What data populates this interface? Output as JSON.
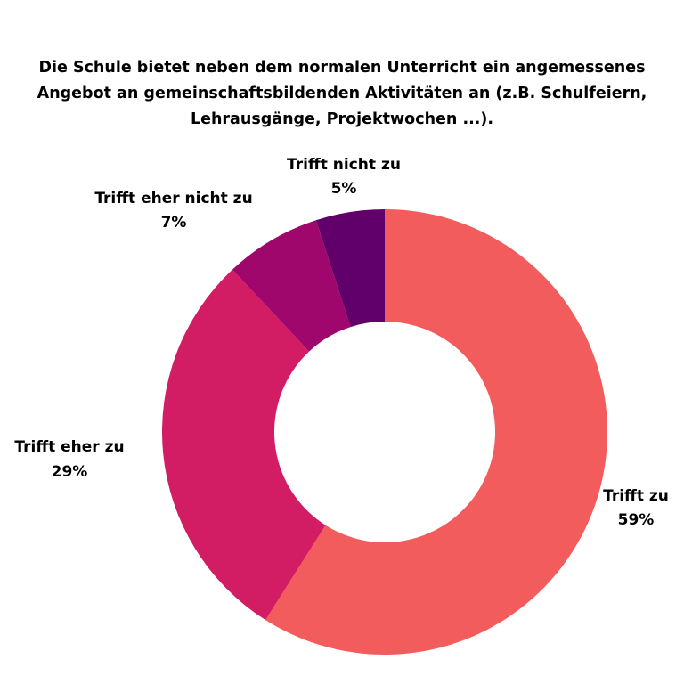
{
  "chart_data": {
    "type": "pie",
    "variant": "donut",
    "title": "Die Schule bietet neben dem normalen Unterricht ein angemessenes Angebot an gemeinschaftsbildenden Aktivitäten an (z.B. Schulfeiern, Lehrausgänge, Projektwochen ...).",
    "slices": [
      {
        "label": "Trifft zu",
        "value": 59,
        "display": "59%",
        "color": "#F25C5C"
      },
      {
        "label": "Trifft eher zu",
        "value": 29,
        "display": "29%",
        "color": "#D21C63"
      },
      {
        "label": "Trifft eher nicht zu",
        "value": 7,
        "display": "7%",
        "color": "#A0076D"
      },
      {
        "label": "Trifft nicht zu",
        "value": 5,
        "display": "5%",
        "color": "#62006B"
      }
    ],
    "start_angle": "top",
    "direction": "clockwise",
    "legend": "none"
  }
}
